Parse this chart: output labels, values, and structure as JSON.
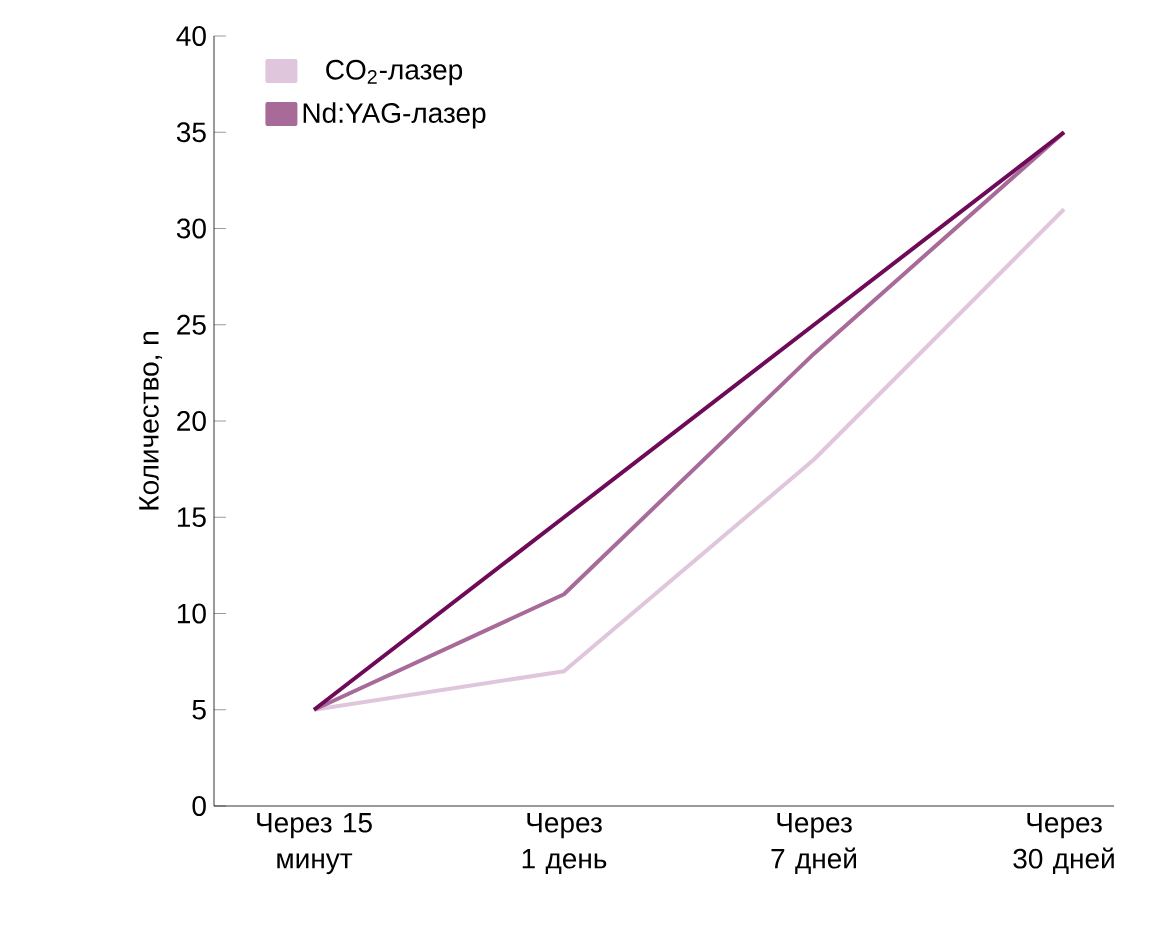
{
  "chart_data": {
    "type": "line",
    "ylabel": "Количество, n",
    "categories": [
      "Через 15 минут",
      "Через 1 день",
      "Через 7 дней",
      "Через 30 дней"
    ],
    "series": [
      {
        "name": "CO$_{2}$-лазер",
        "color": "#e0c6dc",
        "values": [
          5,
          7,
          18,
          31
        ]
      },
      {
        "name": "Nd:YAG-лазер",
        "color": "#a86a98",
        "values": [
          5,
          11,
          23.5,
          35
        ]
      },
      {
        "color": "#6e0a57",
        "values": [
          5,
          15,
          25,
          35
        ]
      }
    ],
    "ylim": [
      0,
      40
    ],
    "yticks": [
      0,
      5,
      10,
      15,
      20,
      25,
      30,
      35,
      40
    ],
    "legend": "top left",
    "grid": false,
    "marker": "none",
    "line_style": "solid"
  }
}
